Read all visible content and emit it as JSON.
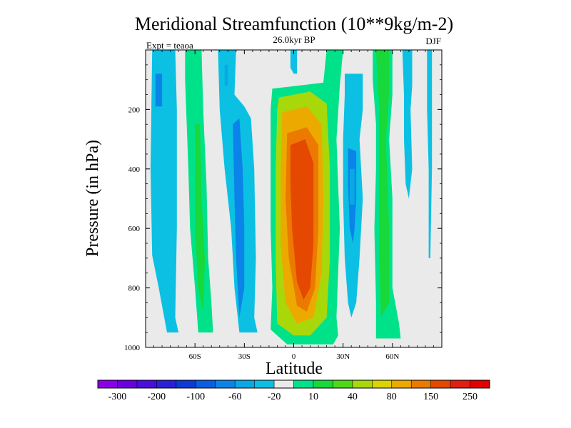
{
  "chart_data": {
    "type": "contour",
    "title": "Meridional Streamfunction (10**9kg/m-2)",
    "subtitle": "26.0kyr BP",
    "left_note": "Expt = teaoa",
    "right_note": "DJF",
    "xlabel": "Latitude",
    "ylabel": "Pressure (in hPa)",
    "xlim": [
      -90,
      90
    ],
    "ylim": [
      1000,
      0
    ],
    "x_ticks": [
      {
        "value": -60,
        "label": "60S"
      },
      {
        "value": -30,
        "label": "30S"
      },
      {
        "value": 0,
        "label": "0"
      },
      {
        "value": 30,
        "label": "30N"
      },
      {
        "value": 60,
        "label": "60N"
      }
    ],
    "y_ticks": [
      {
        "value": 200,
        "label": "200"
      },
      {
        "value": 400,
        "label": "400"
      },
      {
        "value": 600,
        "label": "600"
      },
      {
        "value": 800,
        "label": "800"
      },
      {
        "value": 1000,
        "label": "1000"
      }
    ],
    "colorbar": {
      "colors": [
        "#8a00e6",
        "#6a00e0",
        "#4b0ddb",
        "#2a20d8",
        "#0b3ad6",
        "#0a5ee0",
        "#0a84e8",
        "#09a8e6",
        "#0cc0e3",
        "#eaeaea",
        "#00e28a",
        "#18d83a",
        "#50d818",
        "#a8d80a",
        "#dcd400",
        "#ecaa00",
        "#ec7a00",
        "#e54800",
        "#e21e10",
        "#e20000"
      ],
      "tick_labels": [
        "-300",
        "-200",
        "-100",
        "-60",
        "-20",
        "10",
        "40",
        "80",
        "150",
        "250"
      ]
    },
    "regions": [
      {
        "level": 2,
        "label": "neg (-60 to -20)",
        "poly": [
          [
            -86,
            0
          ],
          [
            -72,
            0
          ],
          [
            -71,
            200
          ],
          [
            -71,
            600
          ],
          [
            -72,
            900
          ],
          [
            -70,
            950
          ],
          [
            -77,
            950
          ],
          [
            -82,
            800
          ],
          [
            -86,
            690
          ],
          [
            -87,
            400
          ]
        ]
      },
      {
        "level": 1,
        "label": "neg (-100 to -60)",
        "poly": [
          [
            -84,
            80
          ],
          [
            -80,
            80
          ],
          [
            -80,
            190
          ],
          [
            -84,
            190
          ]
        ]
      },
      {
        "level": 3,
        "label": "pos (10 to 40)",
        "poly": [
          [
            -66,
            0
          ],
          [
            -56,
            0
          ],
          [
            -55,
            200
          ],
          [
            -53,
            450
          ],
          [
            -52,
            700
          ],
          [
            -50,
            850
          ],
          [
            -49,
            950
          ],
          [
            -58,
            950
          ],
          [
            -60,
            800
          ],
          [
            -63,
            600
          ],
          [
            -64,
            400
          ],
          [
            -66,
            100
          ]
        ]
      },
      {
        "level": 4,
        "label": "pos (40 to 80)",
        "poly": [
          [
            -60,
            250
          ],
          [
            -57,
            250
          ],
          [
            -56,
            500
          ],
          [
            -54,
            700
          ],
          [
            -55,
            880
          ],
          [
            -58,
            800
          ],
          [
            -60,
            600
          ]
        ]
      },
      {
        "level": 2,
        "label": "neg (-60 to -20)",
        "poly": [
          [
            -46,
            0
          ],
          [
            -35,
            0
          ],
          [
            -36,
            150
          ],
          [
            -30,
            190
          ],
          [
            -26,
            230
          ],
          [
            -24,
            400
          ],
          [
            -23,
            700
          ],
          [
            -24,
            900
          ],
          [
            -22,
            950
          ],
          [
            -33,
            950
          ],
          [
            -36,
            800
          ],
          [
            -38,
            600
          ],
          [
            -42,
            400
          ],
          [
            -45,
            200
          ]
        ]
      },
      {
        "level": 1,
        "label": "neg (-100 to -60)",
        "poly": [
          [
            -37,
            250
          ],
          [
            -33,
            230
          ],
          [
            -31,
            400
          ],
          [
            -30,
            600
          ],
          [
            -30,
            800
          ],
          [
            -33,
            900
          ],
          [
            -35,
            700
          ],
          [
            -36,
            500
          ]
        ]
      },
      {
        "level": 0,
        "label": "neg (-300 to -100)",
        "poly": [
          [
            -42,
            50
          ],
          [
            -40,
            50
          ],
          [
            -40,
            120
          ],
          [
            -42,
            120
          ]
        ]
      },
      {
        "level": 2,
        "label": "neg (-60 to -20)",
        "poly": [
          [
            -2,
            0
          ],
          [
            2,
            0
          ],
          [
            2,
            80
          ],
          [
            0,
            80
          ],
          [
            -2,
            60
          ]
        ]
      },
      {
        "level": 3,
        "label": "pos (10 to 40)",
        "poly": [
          [
            -13,
            130
          ],
          [
            3,
            120
          ],
          [
            18,
            110
          ],
          [
            20,
            0
          ],
          [
            30,
            0
          ],
          [
            28,
            120
          ],
          [
            26,
            300
          ],
          [
            28,
            600
          ],
          [
            26,
            900
          ],
          [
            27,
            960
          ],
          [
            24,
            990
          ],
          [
            -4,
            990
          ],
          [
            -14,
            940
          ],
          [
            -13,
            800
          ],
          [
            -14,
            600
          ],
          [
            -14,
            400
          ],
          [
            -14,
            200
          ]
        ]
      },
      {
        "level": 5,
        "label": "pos (80 to 150)",
        "poly": [
          [
            -9,
            160
          ],
          [
            10,
            140
          ],
          [
            20,
            180
          ],
          [
            22,
            400
          ],
          [
            22,
            700
          ],
          [
            20,
            900
          ],
          [
            10,
            960
          ],
          [
            0,
            960
          ],
          [
            -10,
            920
          ],
          [
            -11,
            700
          ],
          [
            -11,
            400
          ],
          [
            -10,
            200
          ]
        ]
      },
      {
        "level": 6,
        "label": "pos (150 to 250)",
        "poly": [
          [
            -7,
            210
          ],
          [
            8,
            190
          ],
          [
            17,
            250
          ],
          [
            18,
            500
          ],
          [
            17,
            750
          ],
          [
            12,
            900
          ],
          [
            2,
            920
          ],
          [
            -5,
            850
          ],
          [
            -8,
            650
          ],
          [
            -8,
            400
          ]
        ]
      },
      {
        "level": 7,
        "label": "pos (250+)",
        "poly": [
          [
            -4,
            280
          ],
          [
            8,
            260
          ],
          [
            15,
            320
          ],
          [
            15,
            600
          ],
          [
            13,
            800
          ],
          [
            8,
            880
          ],
          [
            2,
            860
          ],
          [
            -3,
            700
          ],
          [
            -5,
            500
          ]
        ]
      },
      {
        "level": 8,
        "label": "pos (300+)",
        "poly": [
          [
            -2,
            320
          ],
          [
            7,
            300
          ],
          [
            12,
            380
          ],
          [
            12,
            650
          ],
          [
            10,
            800
          ],
          [
            6,
            840
          ],
          [
            2,
            780
          ],
          [
            -1,
            600
          ],
          [
            -2,
            450
          ]
        ]
      },
      {
        "level": 2,
        "label": "neg (-60 to -20)",
        "poly": [
          [
            31,
            80
          ],
          [
            42,
            80
          ],
          [
            42,
            200
          ],
          [
            40,
            300
          ],
          [
            42,
            500
          ],
          [
            40,
            700
          ],
          [
            38,
            850
          ],
          [
            35,
            900
          ],
          [
            33,
            850
          ],
          [
            31,
            700
          ],
          [
            30,
            500
          ],
          [
            30,
            300
          ],
          [
            31,
            150
          ]
        ]
      },
      {
        "level": 1,
        "label": "neg (-100 to -60)",
        "poly": [
          [
            33,
            330
          ],
          [
            38,
            340
          ],
          [
            38,
            500
          ],
          [
            37,
            600
          ],
          [
            36,
            650
          ],
          [
            34,
            600
          ],
          [
            33,
            450
          ]
        ]
      },
      {
        "level": 0,
        "label": "neg (-300 to -100)",
        "poly": [
          [
            34,
            400
          ],
          [
            37,
            400
          ],
          [
            37,
            520
          ],
          [
            34,
            520
          ]
        ]
      },
      {
        "level": 3,
        "label": "pos (10 to 40)",
        "poly": [
          [
            48,
            0
          ],
          [
            60,
            0
          ],
          [
            60,
            150
          ],
          [
            58,
            300
          ],
          [
            60,
            500
          ],
          [
            60,
            800
          ],
          [
            64,
            920
          ],
          [
            65,
            970
          ],
          [
            50,
            970
          ],
          [
            50,
            850
          ],
          [
            49,
            600
          ],
          [
            50,
            400
          ],
          [
            50,
            250
          ],
          [
            48,
            100
          ]
        ]
      },
      {
        "level": 4,
        "label": "pos (40 to 80)",
        "poly": [
          [
            50,
            0
          ],
          [
            58,
            0
          ],
          [
            58,
            150
          ],
          [
            56,
            300
          ],
          [
            58,
            600
          ],
          [
            58,
            850
          ],
          [
            53,
            900
          ],
          [
            52,
            700
          ],
          [
            52,
            400
          ],
          [
            52,
            200
          ]
        ]
      },
      {
        "level": 2,
        "label": "neg (-60 to -20)",
        "poly": [
          [
            66,
            0
          ],
          [
            72,
            0
          ],
          [
            72,
            120
          ],
          [
            71,
            200
          ],
          [
            72,
            400
          ],
          [
            70,
            500
          ],
          [
            68,
            450
          ],
          [
            67,
            300
          ],
          [
            67,
            150
          ]
        ]
      },
      {
        "level": 2,
        "label": "neg (-60 to -20)",
        "poly": [
          [
            81,
            0
          ],
          [
            84,
            0
          ],
          [
            84,
            150
          ],
          [
            84,
            400
          ],
          [
            83,
            700
          ],
          [
            82,
            700
          ],
          [
            82,
            400
          ],
          [
            81,
            200
          ]
        ]
      }
    ]
  }
}
